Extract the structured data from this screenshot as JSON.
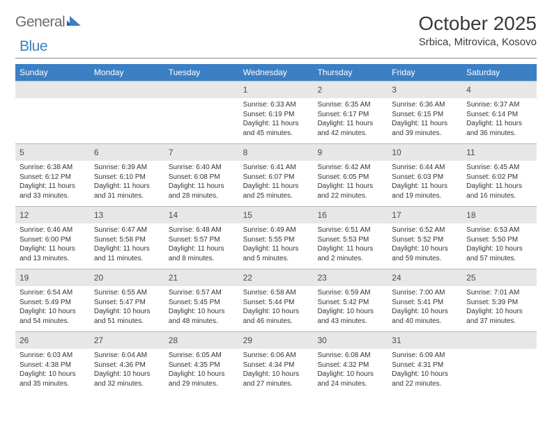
{
  "brand": {
    "text1": "General",
    "text2": "Blue",
    "icon_color": "#3b7fc4"
  },
  "title": "October 2025",
  "subtitle": "Srbica, Mitrovica, Kosovo",
  "colors": {
    "header_bg": "#3b7fc4",
    "header_text": "#ffffff",
    "daybar_bg": "#e7e7e7",
    "rule": "#8a8a8a",
    "text": "#333333"
  },
  "day_labels": [
    "Sunday",
    "Monday",
    "Tuesday",
    "Wednesday",
    "Thursday",
    "Friday",
    "Saturday"
  ],
  "weeks": [
    [
      {
        "empty": true
      },
      {
        "empty": true
      },
      {
        "empty": true
      },
      {
        "day": "1",
        "sunrise": "Sunrise: 6:33 AM",
        "sunset": "Sunset: 6:19 PM",
        "daylight1": "Daylight: 11 hours",
        "daylight2": "and 45 minutes."
      },
      {
        "day": "2",
        "sunrise": "Sunrise: 6:35 AM",
        "sunset": "Sunset: 6:17 PM",
        "daylight1": "Daylight: 11 hours",
        "daylight2": "and 42 minutes."
      },
      {
        "day": "3",
        "sunrise": "Sunrise: 6:36 AM",
        "sunset": "Sunset: 6:15 PM",
        "daylight1": "Daylight: 11 hours",
        "daylight2": "and 39 minutes."
      },
      {
        "day": "4",
        "sunrise": "Sunrise: 6:37 AM",
        "sunset": "Sunset: 6:14 PM",
        "daylight1": "Daylight: 11 hours",
        "daylight2": "and 36 minutes."
      }
    ],
    [
      {
        "day": "5",
        "sunrise": "Sunrise: 6:38 AM",
        "sunset": "Sunset: 6:12 PM",
        "daylight1": "Daylight: 11 hours",
        "daylight2": "and 33 minutes."
      },
      {
        "day": "6",
        "sunrise": "Sunrise: 6:39 AM",
        "sunset": "Sunset: 6:10 PM",
        "daylight1": "Daylight: 11 hours",
        "daylight2": "and 31 minutes."
      },
      {
        "day": "7",
        "sunrise": "Sunrise: 6:40 AM",
        "sunset": "Sunset: 6:08 PM",
        "daylight1": "Daylight: 11 hours",
        "daylight2": "and 28 minutes."
      },
      {
        "day": "8",
        "sunrise": "Sunrise: 6:41 AM",
        "sunset": "Sunset: 6:07 PM",
        "daylight1": "Daylight: 11 hours",
        "daylight2": "and 25 minutes."
      },
      {
        "day": "9",
        "sunrise": "Sunrise: 6:42 AM",
        "sunset": "Sunset: 6:05 PM",
        "daylight1": "Daylight: 11 hours",
        "daylight2": "and 22 minutes."
      },
      {
        "day": "10",
        "sunrise": "Sunrise: 6:44 AM",
        "sunset": "Sunset: 6:03 PM",
        "daylight1": "Daylight: 11 hours",
        "daylight2": "and 19 minutes."
      },
      {
        "day": "11",
        "sunrise": "Sunrise: 6:45 AM",
        "sunset": "Sunset: 6:02 PM",
        "daylight1": "Daylight: 11 hours",
        "daylight2": "and 16 minutes."
      }
    ],
    [
      {
        "day": "12",
        "sunrise": "Sunrise: 6:46 AM",
        "sunset": "Sunset: 6:00 PM",
        "daylight1": "Daylight: 11 hours",
        "daylight2": "and 13 minutes."
      },
      {
        "day": "13",
        "sunrise": "Sunrise: 6:47 AM",
        "sunset": "Sunset: 5:58 PM",
        "daylight1": "Daylight: 11 hours",
        "daylight2": "and 11 minutes."
      },
      {
        "day": "14",
        "sunrise": "Sunrise: 6:48 AM",
        "sunset": "Sunset: 5:57 PM",
        "daylight1": "Daylight: 11 hours",
        "daylight2": "and 8 minutes."
      },
      {
        "day": "15",
        "sunrise": "Sunrise: 6:49 AM",
        "sunset": "Sunset: 5:55 PM",
        "daylight1": "Daylight: 11 hours",
        "daylight2": "and 5 minutes."
      },
      {
        "day": "16",
        "sunrise": "Sunrise: 6:51 AM",
        "sunset": "Sunset: 5:53 PM",
        "daylight1": "Daylight: 11 hours",
        "daylight2": "and 2 minutes."
      },
      {
        "day": "17",
        "sunrise": "Sunrise: 6:52 AM",
        "sunset": "Sunset: 5:52 PM",
        "daylight1": "Daylight: 10 hours",
        "daylight2": "and 59 minutes."
      },
      {
        "day": "18",
        "sunrise": "Sunrise: 6:53 AM",
        "sunset": "Sunset: 5:50 PM",
        "daylight1": "Daylight: 10 hours",
        "daylight2": "and 57 minutes."
      }
    ],
    [
      {
        "day": "19",
        "sunrise": "Sunrise: 6:54 AM",
        "sunset": "Sunset: 5:49 PM",
        "daylight1": "Daylight: 10 hours",
        "daylight2": "and 54 minutes."
      },
      {
        "day": "20",
        "sunrise": "Sunrise: 6:55 AM",
        "sunset": "Sunset: 5:47 PM",
        "daylight1": "Daylight: 10 hours",
        "daylight2": "and 51 minutes."
      },
      {
        "day": "21",
        "sunrise": "Sunrise: 6:57 AM",
        "sunset": "Sunset: 5:45 PM",
        "daylight1": "Daylight: 10 hours",
        "daylight2": "and 48 minutes."
      },
      {
        "day": "22",
        "sunrise": "Sunrise: 6:58 AM",
        "sunset": "Sunset: 5:44 PM",
        "daylight1": "Daylight: 10 hours",
        "daylight2": "and 46 minutes."
      },
      {
        "day": "23",
        "sunrise": "Sunrise: 6:59 AM",
        "sunset": "Sunset: 5:42 PM",
        "daylight1": "Daylight: 10 hours",
        "daylight2": "and 43 minutes."
      },
      {
        "day": "24",
        "sunrise": "Sunrise: 7:00 AM",
        "sunset": "Sunset: 5:41 PM",
        "daylight1": "Daylight: 10 hours",
        "daylight2": "and 40 minutes."
      },
      {
        "day": "25",
        "sunrise": "Sunrise: 7:01 AM",
        "sunset": "Sunset: 5:39 PM",
        "daylight1": "Daylight: 10 hours",
        "daylight2": "and 37 minutes."
      }
    ],
    [
      {
        "day": "26",
        "sunrise": "Sunrise: 6:03 AM",
        "sunset": "Sunset: 4:38 PM",
        "daylight1": "Daylight: 10 hours",
        "daylight2": "and 35 minutes."
      },
      {
        "day": "27",
        "sunrise": "Sunrise: 6:04 AM",
        "sunset": "Sunset: 4:36 PM",
        "daylight1": "Daylight: 10 hours",
        "daylight2": "and 32 minutes."
      },
      {
        "day": "28",
        "sunrise": "Sunrise: 6:05 AM",
        "sunset": "Sunset: 4:35 PM",
        "daylight1": "Daylight: 10 hours",
        "daylight2": "and 29 minutes."
      },
      {
        "day": "29",
        "sunrise": "Sunrise: 6:06 AM",
        "sunset": "Sunset: 4:34 PM",
        "daylight1": "Daylight: 10 hours",
        "daylight2": "and 27 minutes."
      },
      {
        "day": "30",
        "sunrise": "Sunrise: 6:08 AM",
        "sunset": "Sunset: 4:32 PM",
        "daylight1": "Daylight: 10 hours",
        "daylight2": "and 24 minutes."
      },
      {
        "day": "31",
        "sunrise": "Sunrise: 6:09 AM",
        "sunset": "Sunset: 4:31 PM",
        "daylight1": "Daylight: 10 hours",
        "daylight2": "and 22 minutes."
      },
      {
        "empty": true
      }
    ]
  ]
}
